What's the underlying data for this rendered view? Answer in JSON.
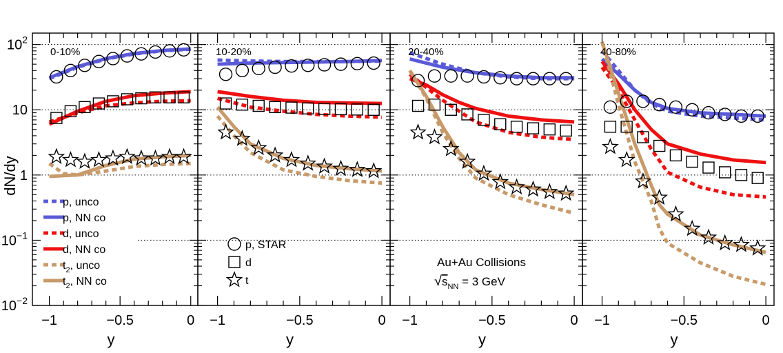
{
  "chart_data": {
    "type": "line",
    "ylabel": "dN/dy",
    "xlabel": "y",
    "yscale": "log",
    "ylim": [
      0.01,
      150
    ],
    "xlim": [
      -1.12,
      0.05
    ],
    "xticks": [
      -1,
      -0.5,
      0
    ],
    "xtick_labels": [
      "−1",
      "−0.5",
      "0"
    ],
    "ytick_labels": [
      {
        "value": 100,
        "base": "10",
        "exp": "2"
      },
      {
        "value": 10,
        "base": "10",
        "exp": ""
      },
      {
        "value": 1,
        "base": "1",
        "exp": ""
      },
      {
        "value": 0.1,
        "base": "10",
        "exp": "−1"
      },
      {
        "value": 0.01,
        "base": "10",
        "exp": "−2"
      }
    ],
    "gridlines_y": [
      100,
      10,
      1,
      0.1
    ],
    "colors": {
      "p": "#5a5ad8",
      "d": "#ee1111",
      "t": "#c89a6a"
    },
    "legend": [
      {
        "key": "p_unco",
        "base": "p",
        "sub": "",
        "rest": ", unco",
        "color": "#5a5ad8",
        "dashed": true
      },
      {
        "key": "p_nn",
        "base": "p",
        "sub": "",
        "rest": ", NN co",
        "color": "#5a5ad8",
        "dashed": false
      },
      {
        "key": "d_unco",
        "base": "d",
        "sub": "",
        "rest": ", unco",
        "color": "#ee1111",
        "dashed": true
      },
      {
        "key": "d_nn",
        "base": "d",
        "sub": "",
        "rest": ", NN co",
        "color": "#ee1111",
        "dashed": false
      },
      {
        "key": "t_unco",
        "base": "t",
        "sub": "2",
        "rest": ", unco",
        "color": "#c89a6a",
        "dashed": true
      },
      {
        "key": "t_nn",
        "base": "t",
        "sub": "2",
        "rest": ", NN co",
        "color": "#c89a6a",
        "dashed": false
      }
    ],
    "marker_legend": [
      {
        "marker": "circle",
        "label": "p, STAR"
      },
      {
        "marker": "square",
        "label": "d"
      },
      {
        "marker": "star",
        "label": "t"
      }
    ],
    "annotation": {
      "line1": "Au+Au Collisions",
      "sqrt_sym": "√",
      "s": "s",
      "nn": "NN",
      "rest": " = 3 GeV"
    },
    "panels": [
      {
        "label": "0-10%",
        "p_data": {
          "x": [
            -0.95,
            -0.85,
            -0.75,
            -0.65,
            -0.55,
            -0.45,
            -0.35,
            -0.25,
            -0.15,
            -0.05
          ],
          "y": [
            32,
            40,
            48,
            55,
            61,
            67,
            72,
            77,
            80,
            83
          ]
        },
        "d_data": {
          "x": [
            -0.95,
            -0.85,
            -0.75,
            -0.65,
            -0.55,
            -0.45,
            -0.35,
            -0.25,
            -0.15,
            -0.05
          ],
          "y": [
            7.5,
            9.5,
            11,
            12.5,
            13.5,
            14.5,
            15,
            15.5,
            15.5,
            15.5
          ]
        },
        "t_data": {
          "x": [
            -0.95,
            -0.85,
            -0.75,
            -0.65,
            -0.55,
            -0.45,
            -0.35,
            -0.25,
            -0.15,
            -0.05
          ],
          "y": [
            1.9,
            1.7,
            1.6,
            1.7,
            1.8,
            1.9,
            1.8,
            1.8,
            1.9,
            1.9
          ]
        },
        "curves": {
          "p_unco": {
            "x": [
              -1,
              -0.8,
              -0.6,
              -0.4,
              -0.2,
              0
            ],
            "y": [
              30,
              45,
              60,
              72,
              80,
              85
            ]
          },
          "p_nn": {
            "x": [
              -1,
              -0.8,
              -0.6,
              -0.4,
              -0.2,
              0
            ],
            "y": [
              31,
              46,
              61,
              73,
              81,
              86
            ]
          },
          "d_unco": {
            "x": [
              -1,
              -0.8,
              -0.6,
              -0.4,
              -0.2,
              0
            ],
            "y": [
              6.5,
              9,
              11.5,
              12.8,
              13.5,
              13.8
            ]
          },
          "d_nn": {
            "x": [
              -1,
              -0.8,
              -0.6,
              -0.4,
              -0.2,
              0
            ],
            "y": [
              6,
              9.5,
              13.5,
              16.5,
              18,
              19
            ]
          },
          "t_unco": {
            "x": [
              -1,
              -0.9,
              -0.8,
              -0.6,
              -0.4,
              -0.2,
              0
            ],
            "y": [
              1.5,
              1.05,
              1.0,
              1.15,
              1.35,
              1.45,
              1.5
            ]
          },
          "t_nn": {
            "x": [
              -1,
              -0.8,
              -0.6,
              -0.4,
              -0.2,
              0
            ],
            "y": [
              0.95,
              1.0,
              1.4,
              1.75,
              1.9,
              2.0
            ]
          }
        }
      },
      {
        "label": "10-20%",
        "p_data": {
          "x": [
            -0.95,
            -0.85,
            -0.75,
            -0.65,
            -0.55,
            -0.45,
            -0.35,
            -0.25,
            -0.15,
            -0.05
          ],
          "y": [
            35,
            40,
            43,
            45,
            47,
            48,
            49,
            50,
            51,
            52
          ]
        },
        "d_data": {
          "x": [
            -0.95,
            -0.85,
            -0.75,
            -0.65,
            -0.55,
            -0.45,
            -0.35,
            -0.25,
            -0.15,
            -0.05
          ],
          "y": [
            12.5,
            12,
            11.5,
            11,
            10.8,
            10.5,
            10.3,
            10.2,
            10.1,
            10
          ]
        },
        "t_data": {
          "x": [
            -0.95,
            -0.85,
            -0.75,
            -0.65,
            -0.55,
            -0.45,
            -0.35,
            -0.25,
            -0.15,
            -0.05
          ],
          "y": [
            4.5,
            3.6,
            2.6,
            2.0,
            1.7,
            1.5,
            1.35,
            1.25,
            1.2,
            1.15
          ]
        },
        "curves": {
          "p_unco": {
            "x": [
              -1,
              -0.8,
              -0.6,
              -0.4,
              -0.2,
              0
            ],
            "y": [
              58,
              56,
              55,
              55,
              55,
              56
            ]
          },
          "p_nn": {
            "x": [
              -1,
              -0.8,
              -0.6,
              -0.4,
              -0.2,
              0
            ],
            "y": [
              50,
              52,
              53,
              54,
              55,
              57
            ]
          },
          "d_unco": {
            "x": [
              -1,
              -0.8,
              -0.6,
              -0.4,
              -0.2,
              0
            ],
            "y": [
              15,
              11,
              9.5,
              8.5,
              8,
              7.7
            ]
          },
          "d_nn": {
            "x": [
              -1,
              -0.8,
              -0.6,
              -0.4,
              -0.2,
              0
            ],
            "y": [
              19,
              16,
              14,
              13,
              12.7,
              12.5
            ]
          },
          "t_unco": {
            "x": [
              -1,
              -0.9,
              -0.8,
              -0.6,
              -0.4,
              -0.2,
              0
            ],
            "y": [
              8,
              4,
              2.2,
              1.2,
              0.95,
              0.82,
              0.75
            ]
          },
          "t_nn": {
            "x": [
              -1,
              -0.9,
              -0.8,
              -0.6,
              -0.4,
              -0.2,
              0
            ],
            "y": [
              11,
              5.5,
              3,
              1.8,
              1.4,
              1.25,
              1.15
            ]
          }
        }
      },
      {
        "label": "20-40%",
        "p_data": {
          "x": [
            -0.95,
            -0.85,
            -0.75,
            -0.65,
            -0.55,
            -0.45,
            -0.35,
            -0.25,
            -0.15,
            -0.05
          ],
          "y": [
            28,
            33,
            33,
            33,
            32,
            31,
            30,
            30,
            30,
            30
          ]
        },
        "d_data": {
          "x": [
            -0.95,
            -0.85,
            -0.75,
            -0.65,
            -0.55,
            -0.45,
            -0.35,
            -0.25,
            -0.15,
            -0.05
          ],
          "y": [
            11.5,
            12,
            10,
            8.5,
            7,
            6,
            5.5,
            5.2,
            5,
            4.8
          ]
        },
        "t_data": {
          "x": [
            -0.95,
            -0.85,
            -0.75,
            -0.65,
            -0.55,
            -0.45,
            -0.35,
            -0.25,
            -0.15,
            -0.05
          ],
          "y": [
            4.5,
            3.8,
            2.5,
            1.6,
            1.05,
            0.78,
            0.65,
            0.6,
            0.55,
            0.52
          ]
        },
        "curves": {
          "p_unco": {
            "x": [
              -1,
              -0.8,
              -0.6,
              -0.4,
              -0.2,
              0
            ],
            "y": [
              75,
              50,
              37,
              32,
              30,
              30
            ]
          },
          "p_nn": {
            "x": [
              -1,
              -0.8,
              -0.6,
              -0.4,
              -0.2,
              0
            ],
            "y": [
              60,
              45,
              37,
              33,
              31,
              31
            ]
          },
          "d_unco": {
            "x": [
              -1,
              -0.9,
              -0.8,
              -0.7,
              -0.6,
              -0.4,
              -0.2,
              0
            ],
            "y": [
              35,
              22,
              14,
              9.5,
              6.5,
              4.5,
              3.8,
              3.5
            ]
          },
          "d_nn": {
            "x": [
              -1,
              -0.9,
              -0.8,
              -0.7,
              -0.6,
              -0.4,
              -0.2,
              0
            ],
            "y": [
              30,
              24,
              17,
              13,
              10.5,
              8,
              7,
              6.5
            ]
          },
          "t_unco": {
            "x": [
              -1,
              -0.9,
              -0.8,
              -0.7,
              -0.6,
              -0.4,
              -0.2,
              0
            ],
            "y": [
              40,
              15,
              4.5,
              1.8,
              0.9,
              0.5,
              0.35,
              0.26
            ]
          },
          "t_nn": {
            "x": [
              -1,
              -0.9,
              -0.8,
              -0.7,
              -0.6,
              -0.4,
              -0.2,
              0
            ],
            "y": [
              40,
              16,
              5.5,
              2.2,
              1.2,
              0.75,
              0.6,
              0.5
            ]
          }
        }
      },
      {
        "label": "40-80%",
        "p_data": {
          "x": [
            -0.95,
            -0.85,
            -0.75,
            -0.65,
            -0.55,
            -0.45,
            -0.35,
            -0.25,
            -0.15,
            -0.05
          ],
          "y": [
            11,
            13.5,
            13.5,
            12,
            11,
            10,
            9,
            8.5,
            8,
            8
          ]
        },
        "d_data": {
          "x": [
            -0.95,
            -0.85,
            -0.75,
            -0.65,
            -0.55,
            -0.45,
            -0.35,
            -0.25,
            -0.15,
            -0.05
          ],
          "y": [
            5.5,
            5.5,
            3.8,
            2.8,
            2.0,
            1.6,
            1.3,
            1.1,
            1.0,
            0.9
          ]
        },
        "t_data": {
          "x": [
            -0.95,
            -0.85,
            -0.75,
            -0.65,
            -0.55,
            -0.45,
            -0.35,
            -0.25,
            -0.15,
            -0.05
          ],
          "y": [
            2.7,
            1.7,
            0.8,
            0.45,
            0.25,
            0.15,
            0.11,
            0.09,
            0.085,
            0.075
          ]
        },
        "curves": {
          "p_unco": {
            "x": [
              -1,
              -0.9,
              -0.8,
              -0.7,
              -0.6,
              -0.4,
              -0.2,
              0
            ],
            "y": [
              80,
              40,
              20,
              12.5,
              9.5,
              8,
              7.5,
              7
            ]
          },
          "p_nn": {
            "x": [
              -1,
              -0.9,
              -0.8,
              -0.7,
              -0.6,
              -0.4,
              -0.2,
              0
            ],
            "y": [
              60,
              35,
              20,
              13,
              10.5,
              9,
              8.5,
              8
            ]
          },
          "d_unco": {
            "x": [
              -1,
              -0.9,
              -0.8,
              -0.7,
              -0.6,
              -0.4,
              -0.2,
              0
            ],
            "y": [
              45,
              20,
              7,
              2.5,
              1.1,
              0.65,
              0.5,
              0.46
            ]
          },
          "d_nn": {
            "x": [
              -1,
              -0.9,
              -0.8,
              -0.7,
              -0.6,
              -0.4,
              -0.2,
              0
            ],
            "y": [
              55,
              25,
              10,
              5,
              3,
              2.1,
              1.7,
              1.55
            ]
          },
          "t_unco": {
            "x": [
              -1,
              -0.9,
              -0.8,
              -0.7,
              -0.65,
              -0.6,
              -0.4,
              -0.2,
              0
            ],
            "y": [
              110,
              12,
              1.6,
              0.4,
              0.15,
              0.09,
              0.045,
              0.028,
              0.021
            ]
          },
          "t_nn": {
            "x": [
              -1,
              -0.9,
              -0.8,
              -0.7,
              -0.65,
              -0.6,
              -0.4,
              -0.2,
              0
            ],
            "y": [
              110,
              18,
              3,
              0.7,
              0.35,
              0.25,
              0.12,
              0.085,
              0.065
            ]
          }
        }
      }
    ]
  }
}
